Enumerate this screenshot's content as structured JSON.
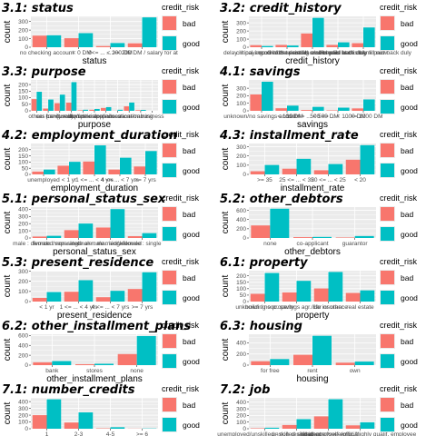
{
  "colors": {
    "bad": "#F8766D",
    "good": "#00BFC4",
    "panel": "#EBEBEB",
    "grid": "#FFFFFF"
  },
  "chart_data": [
    {
      "type": "bar",
      "title": "3.1: status",
      "xlabel": "status",
      "ylabel": "count",
      "categories": [
        "no checking account",
        "< 0 DM",
        "0 <= ... < 200 DM",
        "... >= 200 DM / salary for at least 1 year"
      ],
      "tick_labels": [
        "no checking account",
        "... < 0 DM",
        "0<= ... < 200 DM",
        "... >= 200 DM / salary for at"
      ],
      "series": [
        {
          "name": "bad",
          "values": [
            135,
            105,
            14,
            46
          ]
        },
        {
          "name": "good",
          "values": [
            139,
            164,
            49,
            348
          ]
        }
      ],
      "yticks": [
        0,
        100,
        200,
        300
      ],
      "ylim": [
        0,
        360
      ],
      "legend_title": "credit_risk"
    },
    {
      "type": "bar",
      "title": "3.2: credit_history",
      "xlabel": "credit_history",
      "ylabel": "count",
      "categories": [
        "delay in paying off in the past",
        "critical account/other credits elsewhere",
        "no credits taken/all credits paid back duly",
        "existing credits paid back duly till now",
        "all credits at this bank paid back duly"
      ],
      "tick_labels": [
        "delay in paying off in the past",
        "critical account/other credits elsewhere",
        "no credits taken/all credits paid back duly",
        "existing credits paid back duly till now",
        "all credits at this bank paid back duly"
      ],
      "series": [
        {
          "name": "bad",
          "values": [
            25,
            28,
            169,
            28,
            50
          ]
        },
        {
          "name": "good",
          "values": [
            15,
            21,
            361,
            60,
            243
          ]
        }
      ],
      "yticks": [
        0,
        100,
        200,
        300
      ],
      "ylim": [
        0,
        380
      ],
      "legend_title": "credit_risk"
    },
    {
      "type": "bar",
      "title": "3.3: purpose",
      "xlabel": "purpose",
      "ylabel": "count",
      "categories": [
        "others",
        "car (new)",
        "car (used)",
        "furniture/equipment",
        "radio/television",
        "domestic appliances",
        "repairs",
        "education",
        "vacation",
        "retraining",
        "business"
      ],
      "tick_labels": [
        "others",
        "car (new)",
        "car (used)",
        "furniture/equipment",
        "radio/television",
        "domestic appliances",
        "repairs",
        "education",
        "vacation",
        "retraining",
        "business"
      ],
      "series": [
        {
          "name": "bad",
          "values": [
            89,
            17,
            58,
            62,
            4,
            8,
            22,
            1,
            34,
            5,
            0
          ]
        },
        {
          "name": "good",
          "values": [
            145,
            86,
            123,
            218,
            8,
            14,
            28,
            8,
            63,
            7,
            0
          ]
        }
      ],
      "yticks": [
        0,
        50,
        100,
        150,
        200
      ],
      "ylim": [
        0,
        235
      ],
      "legend_title": "credit_risk"
    },
    {
      "type": "bar",
      "title": "4.1: savings",
      "xlabel": "savings",
      "ylabel": "count",
      "categories": [
        "unknown/no savings account",
        "... < 100 DM",
        "100 <= ... < 500 DM",
        "500 <= ... < 1000 DM",
        "... >= 1000 DM"
      ],
      "tick_labels": [
        "unknown/no savings account",
        "... < 100 DM",
        "100 <= ... < 500 DM",
        "500 <= ... < 1000 DM",
        "... >= 1000 DM"
      ],
      "series": [
        {
          "name": "bad",
          "values": [
            217,
            34,
            11,
            6,
            32
          ]
        },
        {
          "name": "good",
          "values": [
            386,
            69,
            52,
            42,
            151
          ]
        }
      ],
      "yticks": [
        0,
        100,
        200,
        300
      ],
      "ylim": [
        0,
        410
      ],
      "legend_title": "credit_risk"
    },
    {
      "type": "bar",
      "title": "4.2: employment_duration",
      "xlabel": "employment_duration",
      "ylabel": "count",
      "categories": [
        "unemployed",
        "< 1 yr",
        "1 <= ... < 4 yrs",
        "4 <= ... < 7 yrs",
        ">= 7 yrs"
      ],
      "tick_labels": [
        "unemployed",
        "< 1 yr",
        "1 <= ... < 4 yrs",
        "4 <= ... < 7 yrs",
        ">= 7 yrs"
      ],
      "series": [
        {
          "name": "bad",
          "values": [
            23,
            70,
            104,
            39,
            64
          ]
        },
        {
          "name": "good",
          "values": [
            39,
            102,
            235,
            135,
            189
          ]
        }
      ],
      "yticks": [
        0,
        50,
        100,
        150,
        200
      ],
      "ylim": [
        0,
        250
      ],
      "legend_title": "credit_risk"
    },
    {
      "type": "bar",
      "title": "4.3: installment_rate",
      "xlabel": "installment_rate",
      "ylabel": "count",
      "categories": [
        ">= 35",
        "25 <= ... < 35",
        "20 <= ... < 25",
        "< 20"
      ],
      "tick_labels": [
        ">= 35",
        "25 <= ... < 35",
        "20 <= ... < 25",
        "< 20"
      ],
      "series": [
        {
          "name": "bad",
          "values": [
            34,
            62,
            45,
            159
          ]
        },
        {
          "name": "good",
          "values": [
            102,
            169,
            112,
            317
          ]
        }
      ],
      "yticks": [
        0,
        100,
        200,
        300
      ],
      "ylim": [
        0,
        335
      ],
      "legend_title": "credit_risk"
    },
    {
      "type": "bar",
      "title": "5.1: personal_status_sex",
      "xlabel": "personal_status_sex",
      "ylabel": "count",
      "categories": [
        "male : divorced/separated",
        "female : non-single or male : single",
        "male : married/widowed",
        "female : single"
      ],
      "tick_labels": [
        "male : divorced/separated",
        "female : non-single or male : single",
        "male : married/widowed",
        "female : single"
      ],
      "series": [
        {
          "name": "bad",
          "values": [
            20,
            109,
            146,
            25
          ]
        },
        {
          "name": "good",
          "values": [
            30,
            201,
            402,
            67
          ]
        }
      ],
      "yticks": [
        0,
        100,
        200,
        300,
        400
      ],
      "ylim": [
        0,
        430
      ],
      "legend_title": "credit_risk"
    },
    {
      "type": "bar",
      "title": "5.2: other_debtors",
      "xlabel": "other_debtors",
      "ylabel": "count",
      "categories": [
        "none",
        "co-applicant",
        "guarantor"
      ],
      "tick_labels": [
        "none",
        "co-applicant",
        "guarantor"
      ],
      "series": [
        {
          "name": "bad",
          "values": [
            272,
            18,
            10
          ]
        },
        {
          "name": "good",
          "values": [
            635,
            23,
            42
          ]
        }
      ],
      "yticks": [
        0,
        200,
        400,
        600
      ],
      "ylim": [
        0,
        670
      ],
      "legend_title": "credit_risk"
    },
    {
      "type": "bar",
      "title": "5.3: present_residence",
      "xlabel": "present_residence",
      "ylabel": "count",
      "categories": [
        "< 1 yr",
        "1 <= ... < 4 yrs",
        "4 <= ... < 7 yrs",
        ">= 7 yrs"
      ],
      "tick_labels": [
        "< 1 yr",
        "1 <= ... < 4 yrs",
        "4 <= ... < 7 yrs",
        ">= 7 yrs"
      ],
      "series": [
        {
          "name": "bad",
          "values": [
            36,
            97,
            43,
            124
          ]
        },
        {
          "name": "good",
          "values": [
            94,
            211,
            106,
            289
          ]
        }
      ],
      "yticks": [
        0,
        100,
        200,
        300
      ],
      "ylim": [
        0,
        305
      ],
      "legend_title": "credit_risk"
    },
    {
      "type": "bar",
      "title": "6.1: property",
      "xlabel": "property",
      "ylabel": "count",
      "categories": [
        "unknown / no property",
        "building soc. savings agr./life insurance",
        "car or other",
        "real estate"
      ],
      "tick_labels": [
        "unknown / no property",
        "building soc. savings agr./life insurance",
        "car or other",
        "real estate"
      ],
      "series": [
        {
          "name": "bad",
          "values": [
            60,
            71,
            102,
            67
          ]
        },
        {
          "name": "good",
          "values": [
            222,
            161,
            230,
            87
          ]
        }
      ],
      "yticks": [
        0,
        50,
        100,
        150,
        200
      ],
      "ylim": [
        0,
        240
      ],
      "legend_title": "credit_risk"
    },
    {
      "type": "bar",
      "title": "6.2: other_installment_plans",
      "xlabel": "other_installment_plans",
      "ylabel": "count",
      "categories": [
        "bank",
        "stores",
        "none"
      ],
      "tick_labels": [
        "bank",
        "stores",
        "none"
      ],
      "series": [
        {
          "name": "bad",
          "values": [
            57,
            19,
            224
          ]
        },
        {
          "name": "good",
          "values": [
            82,
            28,
            590
          ]
        }
      ],
      "yticks": [
        0,
        200,
        400,
        600
      ],
      "ylim": [
        0,
        625
      ],
      "legend_title": "credit_risk"
    },
    {
      "type": "bar",
      "title": "6.3: housing",
      "xlabel": "housing",
      "ylabel": "count",
      "categories": [
        "for free",
        "rent",
        "own"
      ],
      "tick_labels": [
        "for free",
        "rent",
        "own"
      ],
      "series": [
        {
          "name": "bad",
          "values": [
            70,
            186,
            44
          ]
        },
        {
          "name": "good",
          "values": [
            109,
            527,
            64
          ]
        }
      ],
      "yticks": [
        0,
        200,
        400
      ],
      "ylim": [
        0,
        555
      ],
      "legend_title": "credit_risk"
    },
    {
      "type": "bar",
      "title": "7.1: number_credits",
      "xlabel": "number_credits",
      "ylabel": "count",
      "categories": [
        "1",
        "2-3",
        "4-5",
        ">= 6"
      ],
      "tick_labels": [
        "1",
        "2-3",
        "4-5",
        ">= 6"
      ],
      "series": [
        {
          "name": "bad",
          "values": [
            200,
            92,
            6,
            2
          ]
        },
        {
          "name": "good",
          "values": [
            433,
            241,
            22,
            4
          ]
        }
      ],
      "yticks": [
        0,
        100,
        200,
        300,
        400
      ],
      "ylim": [
        0,
        455
      ],
      "legend_title": "credit_risk"
    },
    {
      "type": "bar",
      "title": "7.2: job",
      "xlabel": "job",
      "ylabel": "count",
      "categories": [
        "unemployed/unskilled - non-resident",
        "unskilled - resident",
        "skilled employee/official",
        "manager/self-empl./highly qualif. employee"
      ],
      "tick_labels": [
        "unemployed/unskilled - non-resident",
        "unskilled - resident",
        "skilled employee/official",
        "manager/self-empl./highly qualif. employee"
      ],
      "series": [
        {
          "name": "bad",
          "values": [
            7,
            56,
            186,
            51
          ]
        },
        {
          "name": "good",
          "values": [
            15,
            144,
            444,
            97
          ]
        }
      ],
      "yticks": [
        0,
        100,
        200,
        300,
        400
      ],
      "ylim": [
        0,
        465
      ],
      "legend_title": "credit_risk"
    }
  ]
}
